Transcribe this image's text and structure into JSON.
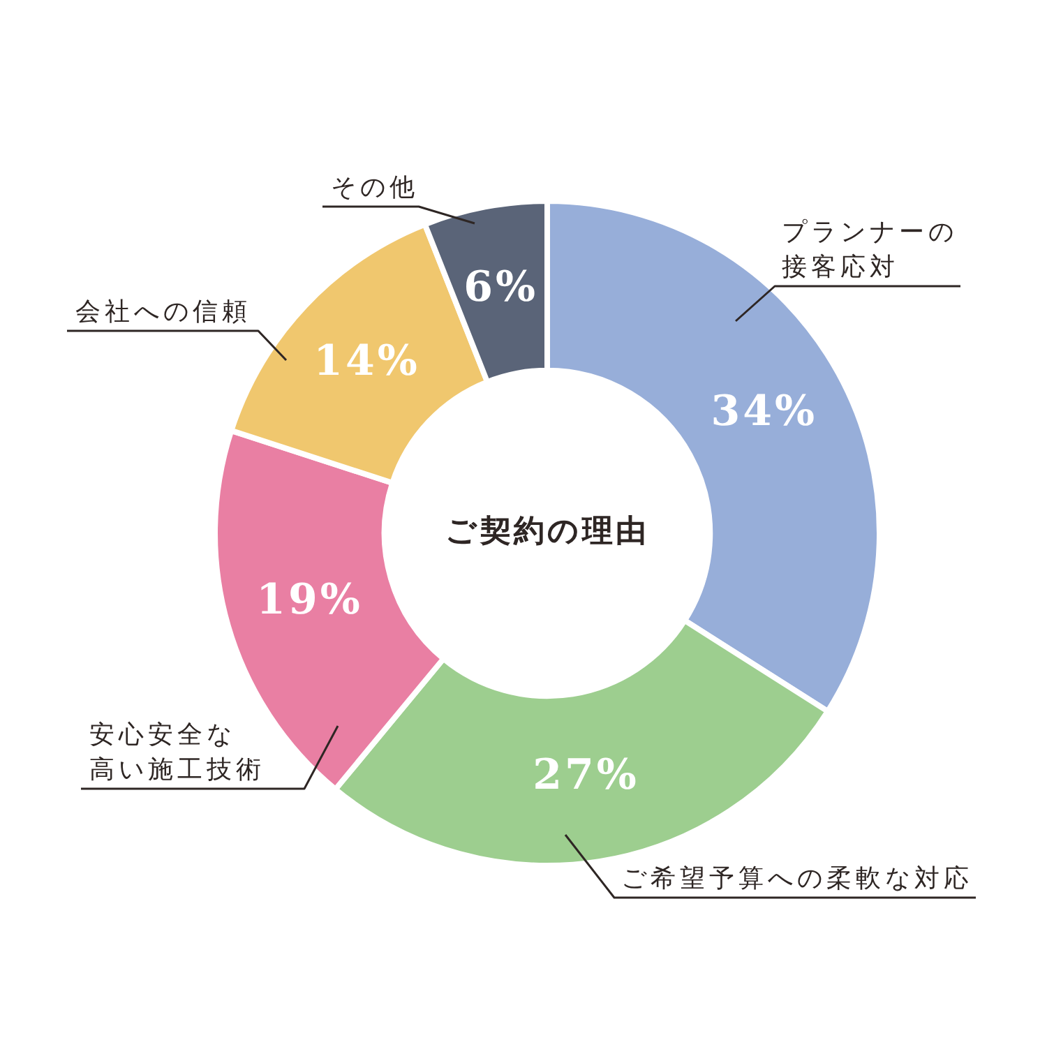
{
  "chart_data": {
    "type": "donut",
    "title": "ご契約の理由",
    "categories": [
      "プランナーの接客応対",
      "ご希望予算への柔軟な対応",
      "安心安全な高い施工技術",
      "会社への信頼",
      "その他"
    ],
    "values": [
      34,
      27,
      19,
      14,
      6
    ],
    "colors": [
      "#97aed9",
      "#9dce8f",
      "#e97fa3",
      "#f0c76e",
      "#5a6478"
    ],
    "value_labels": [
      "34%",
      "27%",
      "19%",
      "14%",
      "6%"
    ],
    "legend": false
  }
}
